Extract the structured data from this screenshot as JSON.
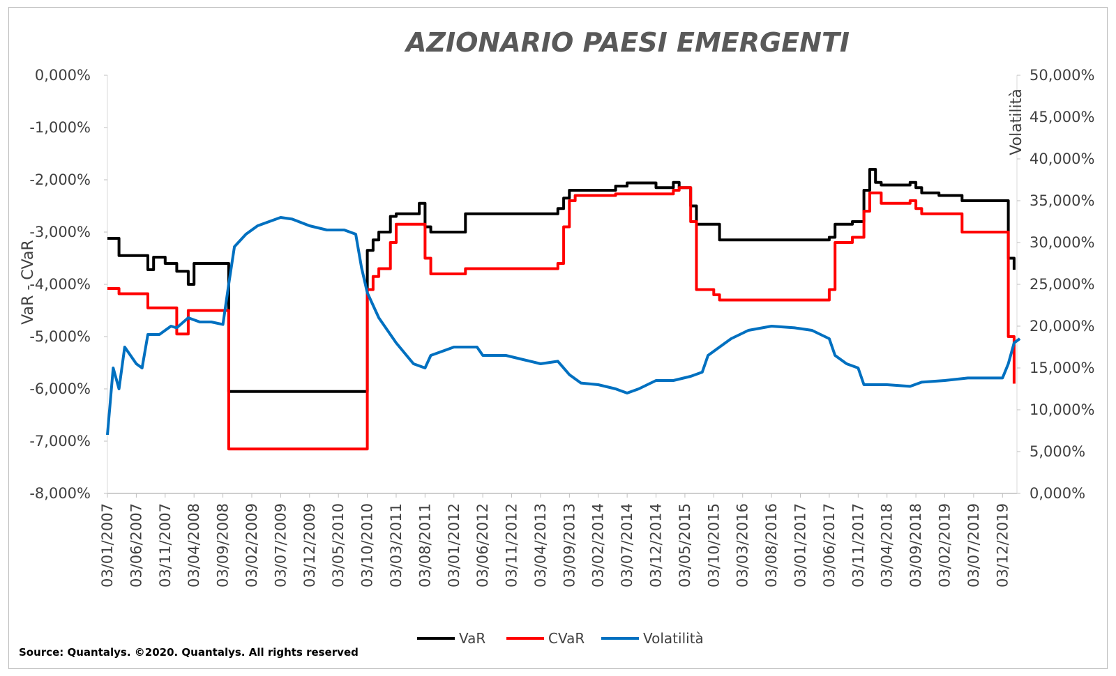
{
  "chart_data": {
    "type": "line",
    "title": "AZIONARIO PAESI EMERGENTI",
    "ylabel_left": "VaR - CVaR",
    "ylabel_right": "Volatilità",
    "ylim_left": [
      -8,
      0
    ],
    "ylim_right": [
      0,
      50
    ],
    "yticks_left": [
      "0,000%",
      "-1,000%",
      "-2,000%",
      "-3,000%",
      "-4,000%",
      "-5,000%",
      "-6,000%",
      "-7,000%",
      "-8,000%"
    ],
    "yticks_right": [
      "50,000%",
      "45,000%",
      "40,000%",
      "35,000%",
      "30,000%",
      "25,000%",
      "20,000%",
      "15,000%",
      "10,000%",
      "5,000%",
      "0,000%"
    ],
    "x_range_months": [
      "2007-01",
      "2020-02"
    ],
    "categories": [
      "03/01/2007",
      "03/06/2007",
      "03/11/2007",
      "03/04/2008",
      "03/09/2008",
      "03/02/2009",
      "03/07/2009",
      "03/12/2009",
      "03/05/2010",
      "03/10/2010",
      "03/03/2011",
      "03/08/2011",
      "03/01/2012",
      "03/06/2012",
      "03/11/2012",
      "03/04/2013",
      "03/09/2013",
      "03/02/2014",
      "03/07/2014",
      "03/12/2014",
      "03/05/2015",
      "03/10/2015",
      "03/03/2016",
      "03/08/2016",
      "03/01/2017",
      "03/06/2017",
      "03/11/2017",
      "03/04/2018",
      "03/09/2018",
      "03/02/2019",
      "03/07/2019",
      "03/12/2019"
    ],
    "grid": false,
    "legend_position": "bottom",
    "source": "Source: Quantalys. ©2020. Quantalys. All rights reserved",
    "series": [
      {
        "name": "VaR",
        "axis": "left",
        "color": "#000000",
        "step": true,
        "points": [
          [
            "2007-01",
            -3.12
          ],
          [
            "2007-02",
            -3.12
          ],
          [
            "2007-03",
            -3.45
          ],
          [
            "2007-07",
            -3.45
          ],
          [
            "2007-08",
            -3.72
          ],
          [
            "2007-09",
            -3.48
          ],
          [
            "2007-11",
            -3.6
          ],
          [
            "2008-01",
            -3.75
          ],
          [
            "2008-03",
            -4.0
          ],
          [
            "2008-04",
            -3.6
          ],
          [
            "2008-09",
            -3.6
          ],
          [
            "2008-10",
            -6.05
          ],
          [
            "2010-09",
            -6.05
          ],
          [
            "2010-10",
            -3.35
          ],
          [
            "2010-11",
            -3.15
          ],
          [
            "2010-12",
            -3.0
          ],
          [
            "2011-02",
            -2.7
          ],
          [
            "2011-03",
            -2.65
          ],
          [
            "2011-07",
            -2.45
          ],
          [
            "2011-08",
            -2.9
          ],
          [
            "2011-09",
            -3.0
          ],
          [
            "2012-03",
            -2.65
          ],
          [
            "2013-07",
            -2.55
          ],
          [
            "2013-08",
            -2.35
          ],
          [
            "2013-09",
            -2.2
          ],
          [
            "2014-05",
            -2.12
          ],
          [
            "2014-07",
            -2.06
          ],
          [
            "2014-12",
            -2.15
          ],
          [
            "2015-03",
            -2.05
          ],
          [
            "2015-04",
            -2.15
          ],
          [
            "2015-06",
            -2.5
          ],
          [
            "2015-07",
            -2.85
          ],
          [
            "2015-10",
            -2.85
          ],
          [
            "2015-11",
            -3.15
          ],
          [
            "2017-06",
            -3.1
          ],
          [
            "2017-07",
            -2.85
          ],
          [
            "2017-10",
            -2.8
          ],
          [
            "2017-12",
            -2.2
          ],
          [
            "2018-01",
            -1.8
          ],
          [
            "2018-02",
            -2.05
          ],
          [
            "2018-03",
            -2.1
          ],
          [
            "2018-08",
            -2.05
          ],
          [
            "2018-09",
            -2.15
          ],
          [
            "2018-10",
            -2.25
          ],
          [
            "2019-01",
            -2.3
          ],
          [
            "2019-05",
            -2.4
          ],
          [
            "2019-12",
            -2.4
          ],
          [
            "2020-01",
            -3.5
          ],
          [
            "2020-02",
            -3.72
          ]
        ]
      },
      {
        "name": "CVaR",
        "axis": "left",
        "color": "#ff0000",
        "step": true,
        "points": [
          [
            "2007-01",
            -4.08
          ],
          [
            "2007-02",
            -4.08
          ],
          [
            "2007-03",
            -4.18
          ],
          [
            "2007-07",
            -4.18
          ],
          [
            "2007-08",
            -4.45
          ],
          [
            "2007-11",
            -4.45
          ],
          [
            "2008-01",
            -4.95
          ],
          [
            "2008-02",
            -4.95
          ],
          [
            "2008-03",
            -4.5
          ],
          [
            "2008-09",
            -4.5
          ],
          [
            "2008-10",
            -7.15
          ],
          [
            "2010-09",
            -7.15
          ],
          [
            "2010-10",
            -4.1
          ],
          [
            "2010-11",
            -3.85
          ],
          [
            "2010-12",
            -3.7
          ],
          [
            "2011-02",
            -3.2
          ],
          [
            "2011-03",
            -2.85
          ],
          [
            "2011-07",
            -2.85
          ],
          [
            "2011-08",
            -3.5
          ],
          [
            "2011-09",
            -3.8
          ],
          [
            "2012-03",
            -3.7
          ],
          [
            "2013-07",
            -3.6
          ],
          [
            "2013-08",
            -2.9
          ],
          [
            "2013-09",
            -2.4
          ],
          [
            "2013-10",
            -2.3
          ],
          [
            "2014-05",
            -2.27
          ],
          [
            "2015-03",
            -2.2
          ],
          [
            "2015-04",
            -2.15
          ],
          [
            "2015-06",
            -2.8
          ],
          [
            "2015-07",
            -4.1
          ],
          [
            "2015-10",
            -4.2
          ],
          [
            "2015-11",
            -4.3
          ],
          [
            "2017-06",
            -4.1
          ],
          [
            "2017-07",
            -3.2
          ],
          [
            "2017-10",
            -3.1
          ],
          [
            "2017-12",
            -2.6
          ],
          [
            "2018-01",
            -2.25
          ],
          [
            "2018-03",
            -2.45
          ],
          [
            "2018-08",
            -2.4
          ],
          [
            "2018-09",
            -2.55
          ],
          [
            "2018-10",
            -2.65
          ],
          [
            "2019-05",
            -3.0
          ],
          [
            "2019-12",
            -3.0
          ],
          [
            "2020-01",
            -5.0
          ],
          [
            "2020-02",
            -5.9
          ]
        ]
      },
      {
        "name": "Volatilità",
        "axis": "right",
        "color": "#0070c0",
        "step": false,
        "points": [
          [
            "2007-01",
            7.0
          ],
          [
            "2007-02",
            15.0
          ],
          [
            "2007-03",
            12.5
          ],
          [
            "2007-04",
            17.5
          ],
          [
            "2007-05",
            16.5
          ],
          [
            "2007-06",
            15.5
          ],
          [
            "2007-07",
            15.0
          ],
          [
            "2007-08",
            19.0
          ],
          [
            "2007-10",
            19.0
          ],
          [
            "2007-12",
            20.0
          ],
          [
            "2008-01",
            19.8
          ],
          [
            "2008-03",
            21.0
          ],
          [
            "2008-05",
            20.5
          ],
          [
            "2008-07",
            20.5
          ],
          [
            "2008-09",
            20.2
          ],
          [
            "2008-10",
            25.0
          ],
          [
            "2008-11",
            29.5
          ],
          [
            "2009-01",
            31.0
          ],
          [
            "2009-03",
            32.0
          ],
          [
            "2009-05",
            32.5
          ],
          [
            "2009-07",
            33.0
          ],
          [
            "2009-09",
            32.8
          ],
          [
            "2009-12",
            32.0
          ],
          [
            "2010-03",
            31.5
          ],
          [
            "2010-06",
            31.5
          ],
          [
            "2010-08",
            31.0
          ],
          [
            "2010-09",
            27.0
          ],
          [
            "2010-10",
            24.0
          ],
          [
            "2010-12",
            21.0
          ],
          [
            "2011-03",
            18.0
          ],
          [
            "2011-06",
            15.5
          ],
          [
            "2011-08",
            15.0
          ],
          [
            "2011-09",
            16.5
          ],
          [
            "2012-01",
            17.5
          ],
          [
            "2012-05",
            17.5
          ],
          [
            "2012-06",
            16.5
          ],
          [
            "2012-10",
            16.5
          ],
          [
            "2013-01",
            16.0
          ],
          [
            "2013-04",
            15.5
          ],
          [
            "2013-07",
            15.8
          ],
          [
            "2013-09",
            14.2
          ],
          [
            "2013-11",
            13.2
          ],
          [
            "2014-02",
            13.0
          ],
          [
            "2014-05",
            12.5
          ],
          [
            "2014-07",
            12.0
          ],
          [
            "2014-09",
            12.5
          ],
          [
            "2014-12",
            13.5
          ],
          [
            "2015-03",
            13.5
          ],
          [
            "2015-06",
            14.0
          ],
          [
            "2015-08",
            14.5
          ],
          [
            "2015-09",
            16.5
          ],
          [
            "2015-11",
            17.5
          ],
          [
            "2016-01",
            18.5
          ],
          [
            "2016-04",
            19.5
          ],
          [
            "2016-08",
            20.0
          ],
          [
            "2016-12",
            19.8
          ],
          [
            "2017-03",
            19.5
          ],
          [
            "2017-06",
            18.5
          ],
          [
            "2017-07",
            16.5
          ],
          [
            "2017-09",
            15.5
          ],
          [
            "2017-11",
            15.0
          ],
          [
            "2017-12",
            13.0
          ],
          [
            "2018-04",
            13.0
          ],
          [
            "2018-08",
            12.8
          ],
          [
            "2018-10",
            13.3
          ],
          [
            "2019-02",
            13.5
          ],
          [
            "2019-06",
            13.8
          ],
          [
            "2019-09",
            13.8
          ],
          [
            "2019-12",
            13.8
          ],
          [
            "2020-01",
            15.5
          ],
          [
            "2020-02",
            18.0
          ],
          [
            "2020-03",
            18.5
          ]
        ]
      }
    ]
  }
}
